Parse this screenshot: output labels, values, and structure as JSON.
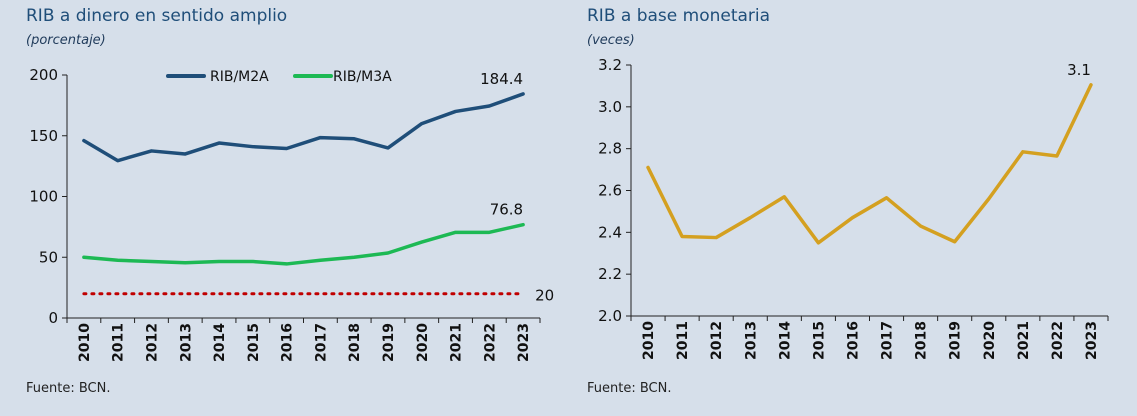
{
  "chart_data": [
    {
      "type": "line",
      "title": "RIB a dinero en sentido amplio",
      "subtitle": "(porcentaje)",
      "source": "Fuente: BCN.",
      "x": [
        "2010",
        "2011",
        "2012",
        "2013",
        "2014",
        "2015",
        "2016",
        "2017",
        "2018",
        "2019",
        "2020",
        "2021",
        "2022",
        "2023"
      ],
      "yticks": [
        "0",
        "50",
        "100",
        "150",
        "200"
      ],
      "ylim": [
        0,
        200
      ],
      "legend_position": "top",
      "series": [
        {
          "name": "RIB/M2A",
          "color": "#1f4e79",
          "values": [
            146,
            129.5,
            137.5,
            135,
            144,
            141,
            139.5,
            148.5,
            147.5,
            140,
            160,
            170,
            174.5,
            184.4
          ],
          "end_label": "184.4"
        },
        {
          "name": "RIB/M3A",
          "color": "#1db954",
          "values": [
            50,
            47.5,
            46.5,
            45.5,
            46.5,
            46.5,
            44.5,
            47.5,
            50,
            53.5,
            62.5,
            70.5,
            70.5,
            76.8
          ],
          "end_label": "76.8"
        }
      ],
      "reference_line": {
        "value": 20,
        "label": "20",
        "color": "#c00000",
        "style": "dotted"
      }
    },
    {
      "type": "line",
      "title": "RIB a base monetaria",
      "subtitle": "(veces)",
      "source": "Fuente: BCN.",
      "x": [
        "2010",
        "2011",
        "2012",
        "2013",
        "2014",
        "2015",
        "2016",
        "2017",
        "2018",
        "2019",
        "2020",
        "2021",
        "2022",
        "2023"
      ],
      "yticks": [
        "2.0",
        "2.2",
        "2.4",
        "2.6",
        "2.8",
        "3.0",
        "3.2"
      ],
      "ylim": [
        2.0,
        3.2
      ],
      "series": [
        {
          "name": "",
          "color": "#d4a020",
          "values": [
            2.71,
            2.38,
            2.375,
            2.47,
            2.57,
            2.35,
            2.47,
            2.565,
            2.43,
            2.355,
            2.56,
            2.785,
            2.765,
            3.105
          ],
          "end_label": "3.1"
        }
      ]
    }
  ]
}
